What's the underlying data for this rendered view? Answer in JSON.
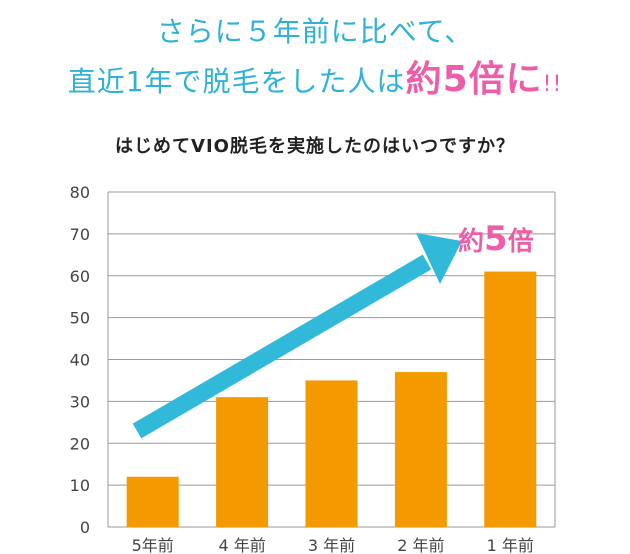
{
  "headline": {
    "line1": "さらに５年前に比べて、",
    "line2_prefix": "直近1年で脱毛をした人は",
    "line2_emphasis": "約5倍に",
    "line2_suffix": "!!"
  },
  "chart_data": {
    "type": "bar",
    "title": "はじめてVIO脱毛を実施したのはいつですか？",
    "categories": [
      "5年前",
      "4 年前",
      "3 年前",
      "2 年前",
      "1 年前"
    ],
    "values": [
      12,
      31,
      35,
      37,
      61
    ],
    "ylim": [
      0,
      80
    ],
    "yticks": [
      0,
      10,
      20,
      30,
      40,
      50,
      60,
      70,
      80
    ],
    "grid": true,
    "xlabel": "",
    "ylabel": "",
    "annotation": {
      "text_prefix": "約",
      "text_number": "5",
      "text_suffix": "倍"
    },
    "colors": {
      "bar": "#f29a00",
      "arrow": "#31b9d9",
      "grid": "#999999",
      "annotation": "#ec5fa8"
    }
  }
}
